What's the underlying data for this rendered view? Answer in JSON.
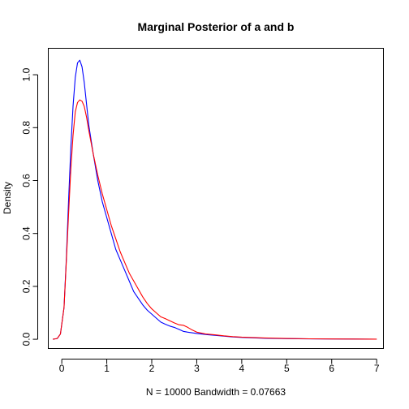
{
  "chart_data": {
    "type": "line",
    "title": "Marginal Posterior of a and b",
    "xlabel": "N = 10000   Bandwidth = 0.07663",
    "ylabel": "Density",
    "xlim": [
      -0.3,
      7.15
    ],
    "ylim": [
      -0.035,
      1.1
    ],
    "x_ticks": [
      0,
      1,
      2,
      3,
      4,
      5,
      6,
      7
    ],
    "y_ticks": [
      0.0,
      0.2,
      0.4,
      0.6,
      0.8,
      1.0
    ],
    "x_tick_labels": [
      "0",
      "1",
      "2",
      "3",
      "4",
      "5",
      "6",
      "7"
    ],
    "y_tick_labels": [
      "0.0",
      "0.2",
      "0.4",
      "0.6",
      "0.8",
      "1.0"
    ],
    "grid": false,
    "legend": "none",
    "series": [
      {
        "color": "#0000ff",
        "points": [
          [
            -0.2,
            0.0
          ],
          [
            -0.1,
            0.003
          ],
          [
            -0.03,
            0.02
          ],
          [
            0.05,
            0.12
          ],
          [
            0.1,
            0.3
          ],
          [
            0.15,
            0.52
          ],
          [
            0.2,
            0.72
          ],
          [
            0.25,
            0.88
          ],
          [
            0.3,
            0.99
          ],
          [
            0.35,
            1.045
          ],
          [
            0.4,
            1.055
          ],
          [
            0.45,
            1.03
          ],
          [
            0.5,
            0.97
          ],
          [
            0.55,
            0.89
          ],
          [
            0.6,
            0.81
          ],
          [
            0.7,
            0.7
          ],
          [
            0.8,
            0.6
          ],
          [
            0.9,
            0.52
          ],
          [
            1.0,
            0.46
          ],
          [
            1.1,
            0.4
          ],
          [
            1.2,
            0.34
          ],
          [
            1.3,
            0.3
          ],
          [
            1.4,
            0.26
          ],
          [
            1.5,
            0.22
          ],
          [
            1.6,
            0.18
          ],
          [
            1.7,
            0.155
          ],
          [
            1.8,
            0.13
          ],
          [
            1.9,
            0.11
          ],
          [
            2.0,
            0.095
          ],
          [
            2.1,
            0.08
          ],
          [
            2.2,
            0.065
          ],
          [
            2.3,
            0.057
          ],
          [
            2.4,
            0.05
          ],
          [
            2.5,
            0.045
          ],
          [
            2.6,
            0.038
          ],
          [
            2.7,
            0.03
          ],
          [
            2.8,
            0.027
          ],
          [
            3.0,
            0.022
          ],
          [
            3.2,
            0.018
          ],
          [
            3.4,
            0.015
          ],
          [
            3.6,
            0.012
          ],
          [
            3.8,
            0.009
          ],
          [
            4.0,
            0.007
          ],
          [
            4.5,
            0.004
          ],
          [
            5.0,
            0.0025
          ],
          [
            5.5,
            0.0015
          ],
          [
            6.0,
            0.001
          ],
          [
            6.5,
            0.0007
          ],
          [
            7.0,
            0.0003
          ]
        ]
      },
      {
        "color": "#ff0000",
        "points": [
          [
            -0.2,
            0.0
          ],
          [
            -0.1,
            0.003
          ],
          [
            -0.03,
            0.02
          ],
          [
            0.05,
            0.12
          ],
          [
            0.1,
            0.29
          ],
          [
            0.15,
            0.47
          ],
          [
            0.2,
            0.64
          ],
          [
            0.25,
            0.77
          ],
          [
            0.3,
            0.86
          ],
          [
            0.35,
            0.895
          ],
          [
            0.4,
            0.905
          ],
          [
            0.45,
            0.9
          ],
          [
            0.5,
            0.88
          ],
          [
            0.55,
            0.84
          ],
          [
            0.6,
            0.79
          ],
          [
            0.7,
            0.7
          ],
          [
            0.8,
            0.62
          ],
          [
            0.9,
            0.55
          ],
          [
            1.0,
            0.49
          ],
          [
            1.1,
            0.43
          ],
          [
            1.2,
            0.38
          ],
          [
            1.3,
            0.33
          ],
          [
            1.4,
            0.29
          ],
          [
            1.5,
            0.25
          ],
          [
            1.6,
            0.22
          ],
          [
            1.7,
            0.19
          ],
          [
            1.8,
            0.16
          ],
          [
            1.9,
            0.135
          ],
          [
            2.0,
            0.115
          ],
          [
            2.1,
            0.1
          ],
          [
            2.2,
            0.085
          ],
          [
            2.3,
            0.078
          ],
          [
            2.4,
            0.07
          ],
          [
            2.5,
            0.062
          ],
          [
            2.6,
            0.055
          ],
          [
            2.7,
            0.053
          ],
          [
            2.8,
            0.045
          ],
          [
            2.9,
            0.035
          ],
          [
            3.0,
            0.027
          ],
          [
            3.2,
            0.02
          ],
          [
            3.4,
            0.017
          ],
          [
            3.6,
            0.013
          ],
          [
            3.8,
            0.01
          ],
          [
            4.0,
            0.008
          ],
          [
            4.5,
            0.005
          ],
          [
            5.0,
            0.003
          ],
          [
            5.5,
            0.0018
          ],
          [
            6.0,
            0.0012
          ],
          [
            6.5,
            0.0008
          ],
          [
            7.0,
            0.0004
          ]
        ]
      }
    ]
  }
}
